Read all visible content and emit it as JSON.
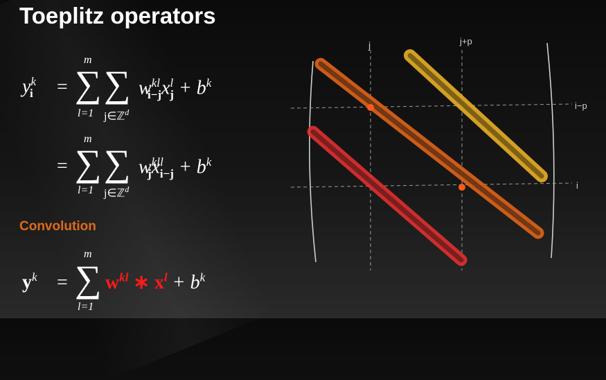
{
  "title": "Toeplitz operators",
  "subheading": "Convolution",
  "eq1": {
    "lhs_base": "y",
    "lhs_sub": "i",
    "lhs_sup": "k",
    "eq_sign": "=",
    "sum1_top": "m",
    "sum1_bottom": "l=1",
    "sum2_bottom": "j∈ℤ",
    "sum2_bottom_sup": "d",
    "w_sub": "i−j",
    "w_sup": "kl",
    "x_sub": "j",
    "x_sup": "l",
    "plus_b": "+ b",
    "b_sup": "k"
  },
  "eq2": {
    "eq_sign": "=",
    "sum1_top": "m",
    "sum1_bottom": "l=1",
    "sum2_bottom": "j∈ℤ",
    "sum2_bottom_sup": "d",
    "w_sub": "j",
    "w_sup": "kl",
    "x_sub": "i−j",
    "x_sup": "l",
    "plus_b": "+ b",
    "b_sup": "k"
  },
  "eq3": {
    "lhs": "y",
    "lhs_sup": "k",
    "eq_sign": "=",
    "sum_top": "m",
    "sum_bottom": "l=1",
    "w": "w",
    "w_sup": "kl",
    "star": "∗",
    "x": "x",
    "x_sup": "l",
    "plus_b": "+ b",
    "b_sup": "k"
  },
  "sketch": {
    "label_j": "j",
    "label_jp": "j+p",
    "label_ip": "i−p",
    "label_i": "i",
    "colors": {
      "orange": "#e0641a",
      "yellow": "#e8b024",
      "red": "#e03030",
      "chalk": "#cfcfcf",
      "dot": "#ff5a1a"
    }
  }
}
